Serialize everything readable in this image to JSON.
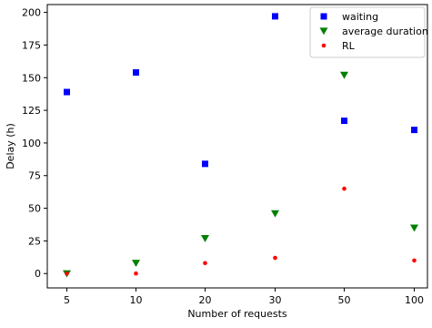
{
  "chart_data": {
    "type": "scatter",
    "xlabel": "Number of requests",
    "ylabel": "Delay (h)",
    "categories": [
      "5",
      "10",
      "20",
      "30",
      "50",
      "100"
    ],
    "ylim": [
      -11,
      206
    ],
    "yticks": [
      0,
      25,
      50,
      75,
      100,
      125,
      150,
      175,
      200
    ],
    "grid": false,
    "legend_position": "top-right",
    "series": [
      {
        "name": "waiting",
        "marker": "square",
        "color": "#0000ff",
        "values": [
          139,
          154,
          84,
          197,
          117,
          110
        ]
      },
      {
        "name": "average duration",
        "marker": "triangle-down",
        "color": "#008000",
        "values": [
          0,
          8,
          27,
          46,
          152,
          35
        ]
      },
      {
        "name": "RL",
        "marker": "circle",
        "color": "#ff0000",
        "values": [
          0,
          0,
          8,
          12,
          65,
          10
        ]
      }
    ]
  }
}
